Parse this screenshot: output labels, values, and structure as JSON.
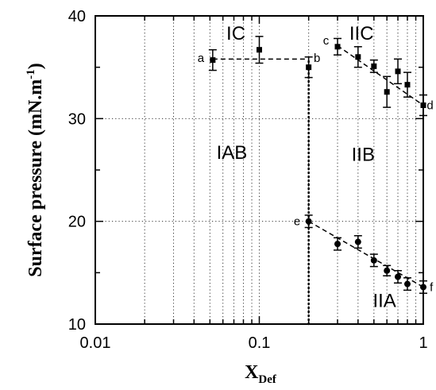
{
  "chart_data": {
    "type": "scatter",
    "x_scale": "log",
    "xlim": [
      0.01,
      1
    ],
    "ylim": [
      10,
      40
    ],
    "x_ticks": [
      0.01,
      0.1,
      1
    ],
    "x_tick_labels": [
      "0.01",
      "0.1",
      "1"
    ],
    "y_ticks": [
      10,
      20,
      30,
      40
    ],
    "y_tick_labels": [
      "10",
      "20",
      "30",
      "40"
    ],
    "ylabel": "Surface pressure (mN.m",
    "ylabel_sup": "-1",
    "ylabel_close": ")",
    "xlabel_main": "X",
    "xlabel_sub": "Def",
    "grid": true,
    "series": [
      {
        "marker": "square",
        "points": [
          {
            "x": 0.052,
            "y": 35.7,
            "err": 1.0
          },
          {
            "x": 0.1,
            "y": 36.7,
            "err": 1.3
          },
          {
            "x": 0.2,
            "y": 35.0,
            "err": 1.0
          },
          {
            "x": 0.3,
            "y": 37.0,
            "err": 0.8
          },
          {
            "x": 0.4,
            "y": 36.0,
            "err": 1.0
          },
          {
            "x": 0.5,
            "y": 35.1,
            "err": 0.6
          },
          {
            "x": 0.6,
            "y": 32.6,
            "err": 1.5
          },
          {
            "x": 0.7,
            "y": 34.6,
            "err": 1.2
          },
          {
            "x": 0.8,
            "y": 33.3,
            "err": 1.2
          },
          {
            "x": 1.0,
            "y": 31.3,
            "err": 1.0
          }
        ]
      },
      {
        "marker": "circle",
        "points": [
          {
            "x": 0.2,
            "y": 20.0,
            "err": 0.6
          },
          {
            "x": 0.3,
            "y": 17.8,
            "err": 0.6
          },
          {
            "x": 0.4,
            "y": 18.0,
            "err": 0.6
          },
          {
            "x": 0.5,
            "y": 16.2,
            "err": 0.6
          },
          {
            "x": 0.6,
            "y": 15.2,
            "err": 0.5
          },
          {
            "x": 0.7,
            "y": 14.6,
            "err": 0.6
          },
          {
            "x": 0.8,
            "y": 13.9,
            "err": 0.6
          },
          {
            "x": 1.0,
            "y": 13.6,
            "err": 0.6
          }
        ]
      }
    ],
    "dashed_lines": [
      {
        "from": [
          0.052,
          35.8
        ],
        "to": [
          0.2,
          35.8
        ]
      },
      {
        "from": [
          0.3,
          37.1
        ],
        "to": [
          1.0,
          31.3
        ]
      },
      {
        "from": [
          0.2,
          20.0
        ],
        "to": [
          1.0,
          13.6
        ]
      }
    ],
    "dotted_vertical": {
      "x": 0.2,
      "y_from": 10,
      "y_to": 35.8
    },
    "point_labels": [
      {
        "text": "a",
        "x": 0.044,
        "y": 35.9
      },
      {
        "text": "b",
        "x": 0.225,
        "y": 35.9
      },
      {
        "text": "c",
        "x": 0.255,
        "y": 37.6
      },
      {
        "text": "d",
        "x": 1.1,
        "y": 31.3
      },
      {
        "text": "e",
        "x": 0.17,
        "y": 20.0
      },
      {
        "text": "f",
        "x": 1.12,
        "y": 13.6
      }
    ],
    "region_labels": [
      {
        "text": "IC",
        "x": 0.072,
        "y": 38.3
      },
      {
        "text": "IIC",
        "x": 0.42,
        "y": 38.3
      },
      {
        "text": "IAB",
        "x": 0.068,
        "y": 26.7
      },
      {
        "text": "IIB",
        "x": 0.43,
        "y": 26.5
      },
      {
        "text": "IIA",
        "x": 0.58,
        "y": 12.3
      }
    ]
  }
}
